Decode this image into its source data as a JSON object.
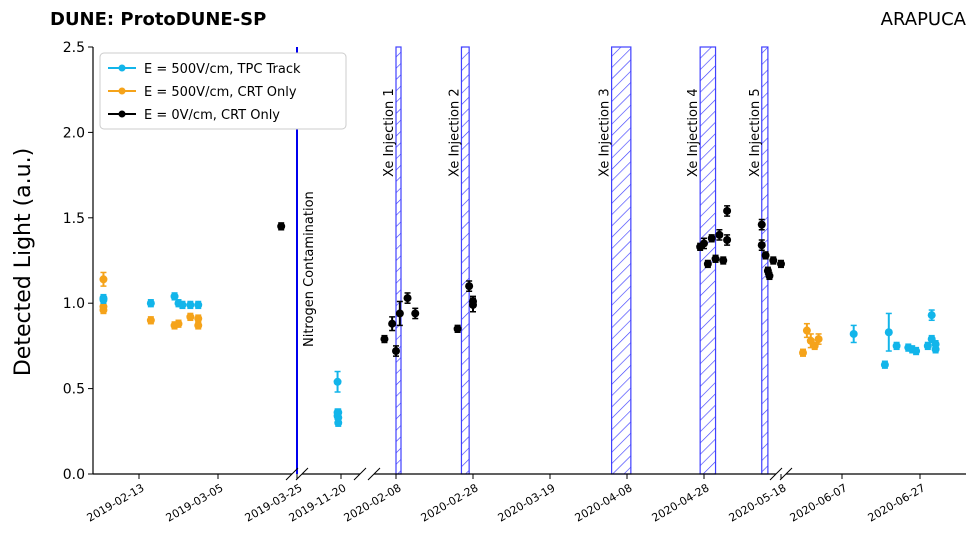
{
  "chart_data": {
    "type": "scatter",
    "title": "DUNE: ProtoDUNE-SP",
    "subtitle": "ARAPUCA",
    "xlabel": "",
    "ylabel": "Detected Light (a.u.)",
    "ylim": [
      0,
      2.5
    ],
    "yticks": [
      "0.0",
      "0.5",
      "1.0",
      "1.5",
      "2.0",
      "2.5"
    ],
    "xticks": [
      "2019-02-13",
      "2019-03-05",
      "2019-03-25",
      "2019-11-20",
      "2020-02-08",
      "2020-02-28",
      "2020-03-19",
      "2020-04-08",
      "2020-04-28",
      "2020-05-18",
      "2020-06-07",
      "2020-06-27"
    ],
    "grid": false,
    "legend_position": "top-left",
    "legend": [
      {
        "label": "E = 500V/cm, TPC Track",
        "color": "#12b5ea"
      },
      {
        "label": "E = 500V/cm, CRT Only",
        "color": "#f5a31a"
      },
      {
        "label": "E = 0V/cm, CRT Only",
        "color": "#000000"
      }
    ],
    "series": [
      {
        "name": "E = 500V/cm, TPC Track",
        "color": "#12b5ea",
        "points": [
          {
            "x": "2019-02-04",
            "y": 1.03,
            "err": 0.02
          },
          {
            "x": "2019-02-04",
            "y": 1.02,
            "err": 0.02
          },
          {
            "x": "2019-02-16",
            "y": 1.0,
            "err": 0.02
          },
          {
            "x": "2019-02-22",
            "y": 1.04,
            "err": 0.02
          },
          {
            "x": "2019-02-23",
            "y": 1.0,
            "err": 0.02
          },
          {
            "x": "2019-02-24",
            "y": 0.99,
            "err": 0.02
          },
          {
            "x": "2019-02-26",
            "y": 0.99,
            "err": 0.02
          },
          {
            "x": "2019-02-28",
            "y": 0.99,
            "err": 0.02
          },
          {
            "x": "2019-11-15",
            "y": 0.54,
            "err": 0.06
          },
          {
            "x": "2019-11-15",
            "y": 0.36,
            "err": 0.02
          },
          {
            "x": "2019-11-15",
            "y": 0.34,
            "err": 0.02
          },
          {
            "x": "2019-11-16",
            "y": 0.3,
            "err": 0.02
          },
          {
            "x": "2019-11-16",
            "y": 0.33,
            "err": 0.02
          },
          {
            "x": "2019-11-16",
            "y": 0.36,
            "err": 0.02
          },
          {
            "x": "2020-06-10",
            "y": 0.82,
            "err": 0.05
          },
          {
            "x": "2020-06-18",
            "y": 0.64,
            "err": 0.02
          },
          {
            "x": "2020-06-19",
            "y": 0.83,
            "err": 0.11
          },
          {
            "x": "2020-06-21",
            "y": 0.75,
            "err": 0.02
          },
          {
            "x": "2020-06-24",
            "y": 0.74,
            "err": 0.02
          },
          {
            "x": "2020-06-25",
            "y": 0.73,
            "err": 0.02
          },
          {
            "x": "2020-06-26",
            "y": 0.72,
            "err": 0.02
          },
          {
            "x": "2020-06-29",
            "y": 0.75,
            "err": 0.02
          },
          {
            "x": "2020-06-30",
            "y": 0.93,
            "err": 0.03
          },
          {
            "x": "2020-06-30",
            "y": 0.79,
            "err": 0.02
          },
          {
            "x": "2020-07-01",
            "y": 0.76,
            "err": 0.02
          },
          {
            "x": "2020-07-01",
            "y": 0.73,
            "err": 0.02
          }
        ]
      },
      {
        "name": "E = 500V/cm, CRT Only",
        "color": "#f5a31a",
        "points": [
          {
            "x": "2019-02-04",
            "y": 1.14,
            "err": 0.04
          },
          {
            "x": "2019-02-04",
            "y": 0.98,
            "err": 0.02
          },
          {
            "x": "2019-02-04",
            "y": 0.96,
            "err": 0.02
          },
          {
            "x": "2019-02-16",
            "y": 0.9,
            "err": 0.02
          },
          {
            "x": "2019-02-22",
            "y": 0.87,
            "err": 0.02
          },
          {
            "x": "2019-02-23",
            "y": 0.88,
            "err": 0.02
          },
          {
            "x": "2019-02-26",
            "y": 0.92,
            "err": 0.02
          },
          {
            "x": "2019-02-28",
            "y": 0.87,
            "err": 0.02
          },
          {
            "x": "2019-02-28",
            "y": 0.91,
            "err": 0.02
          },
          {
            "x": "2020-05-28",
            "y": 0.71,
            "err": 0.02
          },
          {
            "x": "2020-05-29",
            "y": 0.84,
            "err": 0.04
          },
          {
            "x": "2020-05-30",
            "y": 0.78,
            "err": 0.04
          },
          {
            "x": "2020-05-31",
            "y": 0.75,
            "err": 0.02
          },
          {
            "x": "2020-06-01",
            "y": 0.79,
            "err": 0.03
          }
        ]
      },
      {
        "name": "E = 0V/cm, CRT Only",
        "color": "#000000",
        "points": [
          {
            "x": "2019-03-21",
            "y": 1.45,
            "err": 0.02
          },
          {
            "x": "2020-02-05",
            "y": 0.79,
            "err": 0.02
          },
          {
            "x": "2020-02-07",
            "y": 0.88,
            "err": 0.04
          },
          {
            "x": "2020-02-08",
            "y": 0.72,
            "err": 0.03
          },
          {
            "x": "2020-02-09",
            "y": 0.94,
            "err": 0.07
          },
          {
            "x": "2020-02-11",
            "y": 1.03,
            "err": 0.03
          },
          {
            "x": "2020-02-13",
            "y": 0.94,
            "err": 0.03
          },
          {
            "x": "2020-02-24",
            "y": 0.85,
            "err": 0.02
          },
          {
            "x": "2020-02-27",
            "y": 1.1,
            "err": 0.03
          },
          {
            "x": "2020-02-28",
            "y": 0.99,
            "err": 0.04
          },
          {
            "x": "2020-02-28",
            "y": 1.01,
            "err": 0.03
          },
          {
            "x": "2020-04-27",
            "y": 1.33,
            "err": 0.02
          },
          {
            "x": "2020-04-28",
            "y": 1.35,
            "err": 0.03
          },
          {
            "x": "2020-04-29",
            "y": 1.23,
            "err": 0.02
          },
          {
            "x": "2020-04-30",
            "y": 1.38,
            "err": 0.02
          },
          {
            "x": "2020-05-01",
            "y": 1.26,
            "err": 0.02
          },
          {
            "x": "2020-05-02",
            "y": 1.4,
            "err": 0.03
          },
          {
            "x": "2020-05-03",
            "y": 1.25,
            "err": 0.02
          },
          {
            "x": "2020-05-04",
            "y": 1.37,
            "err": 0.03
          },
          {
            "x": "2020-05-04",
            "y": 1.54,
            "err": 0.03
          },
          {
            "x": "2020-05-13",
            "y": 1.46,
            "err": 0.03
          },
          {
            "x": "2020-05-13",
            "y": 1.34,
            "err": 0.03
          },
          {
            "x": "2020-05-14",
            "y": 1.28,
            "err": 0.02
          },
          {
            "x": "2020-05-15",
            "y": 1.16,
            "err": 0.02
          },
          {
            "x": "2020-05-16",
            "y": 1.25,
            "err": 0.02
          },
          {
            "x": "2020-05-18",
            "y": 1.23,
            "err": 0.02
          },
          {
            "x": "2020-05-19",
            "y": 1.19,
            "err": 0.02
          }
        ]
      }
    ],
    "annotations": [
      {
        "label": "Nitrogen Contamination",
        "type": "line",
        "date": "2019-03-25",
        "color": "#0000ee"
      },
      {
        "label": "Xe Injection 1",
        "type": "band",
        "start": "2020-02-08",
        "end": "2020-02-09",
        "color": "#4040ff"
      },
      {
        "label": "Xe Injection 2",
        "type": "band",
        "start": "2020-02-25",
        "end": "2020-02-27",
        "color": "#4040ff"
      },
      {
        "label": "Xe Injection 3",
        "type": "band",
        "start": "2020-04-04",
        "end": "2020-04-09",
        "color": "#4040ff"
      },
      {
        "label": "Xe Injection 4",
        "type": "band",
        "start": "2020-04-27",
        "end": "2020-05-01",
        "color": "#4040ff"
      },
      {
        "label": "Xe Injection 5",
        "type": "band",
        "start": "2020-05-13",
        "end": "2020-05-19",
        "color": "#4040ff"
      }
    ],
    "axis_breaks": [
      "2019-03-25",
      "2019-11-20",
      "2020-05-18"
    ]
  }
}
